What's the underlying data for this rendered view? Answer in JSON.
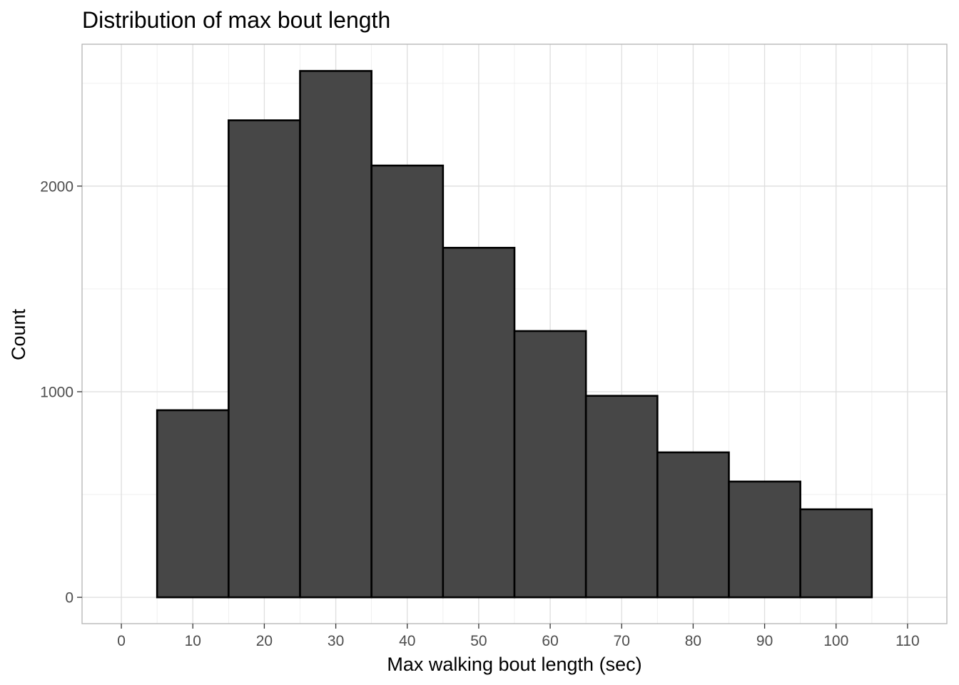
{
  "chart_data": {
    "type": "bar",
    "title": "Distribution of max bout length",
    "xlabel": "Max walking bout length (sec)",
    "ylabel": "Count",
    "bins": [
      {
        "x0": 5,
        "x1": 15,
        "count": 910
      },
      {
        "x0": 15,
        "x1": 25,
        "count": 2320
      },
      {
        "x0": 25,
        "x1": 35,
        "count": 2560
      },
      {
        "x0": 35,
        "x1": 45,
        "count": 2100
      },
      {
        "x0": 45,
        "x1": 55,
        "count": 1700
      },
      {
        "x0": 55,
        "x1": 65,
        "count": 1295
      },
      {
        "x0": 65,
        "x1": 75,
        "count": 980
      },
      {
        "x0": 75,
        "x1": 85,
        "count": 705
      },
      {
        "x0": 85,
        "x1": 95,
        "count": 563
      },
      {
        "x0": 95,
        "x1": 105,
        "count": 428
      }
    ],
    "xlim": [
      -5.5,
      115.5
    ],
    "ylim": [
      -128,
      2690
    ],
    "x_ticks": [
      0,
      10,
      20,
      30,
      40,
      50,
      60,
      70,
      80,
      90,
      100,
      110
    ],
    "y_ticks": [
      0,
      1000,
      2000
    ],
    "bar_fill": "#474747",
    "bar_outline": "#000000",
    "grid": true,
    "legend": "none",
    "theme": "light"
  }
}
